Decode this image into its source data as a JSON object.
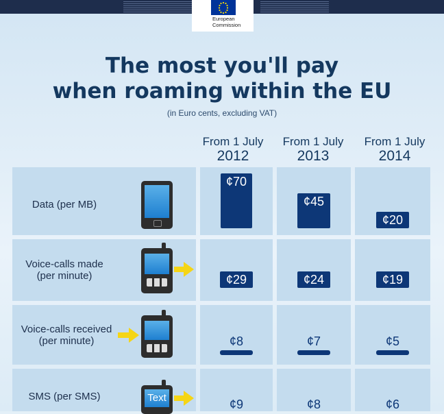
{
  "header": {
    "logo_line1": "European",
    "logo_line2": "Commission"
  },
  "chart_data": {
    "type": "table",
    "title_line1": "The most you'll pay",
    "title_line2": "when roaming within the EU",
    "subtitle": "(in Euro cents, excluding VAT)",
    "columns": [
      {
        "line1": "From 1 July",
        "line2": "2012"
      },
      {
        "line1": "From 1 July",
        "line2": "2013"
      },
      {
        "line1": "From 1 July",
        "line2": "2014"
      }
    ],
    "rows": [
      {
        "label1": "Data (per MB)",
        "label2": "",
        "values": [
          70,
          45,
          20
        ],
        "labels": [
          "¢70",
          "¢45",
          "¢20"
        ]
      },
      {
        "label1": "Voice-calls made",
        "label2": "(per minute)",
        "values": [
          29,
          24,
          19
        ],
        "labels": [
          "¢29",
          "¢24",
          "¢19"
        ]
      },
      {
        "label1": "Voice-calls received",
        "label2": "(per minute)",
        "values": [
          8,
          7,
          5
        ],
        "labels": [
          "¢8",
          "¢7",
          "¢5"
        ]
      },
      {
        "label1": "SMS (per SMS)",
        "label2": "",
        "values": [
          9,
          8,
          6
        ],
        "labels": [
          "¢9",
          "¢8",
          "¢6"
        ]
      }
    ],
    "phone_text": "Text",
    "colors": {
      "bar": "#0d3777",
      "title": "#14385f",
      "cell": "#c4dcee",
      "arrow": "#f5d515"
    }
  }
}
